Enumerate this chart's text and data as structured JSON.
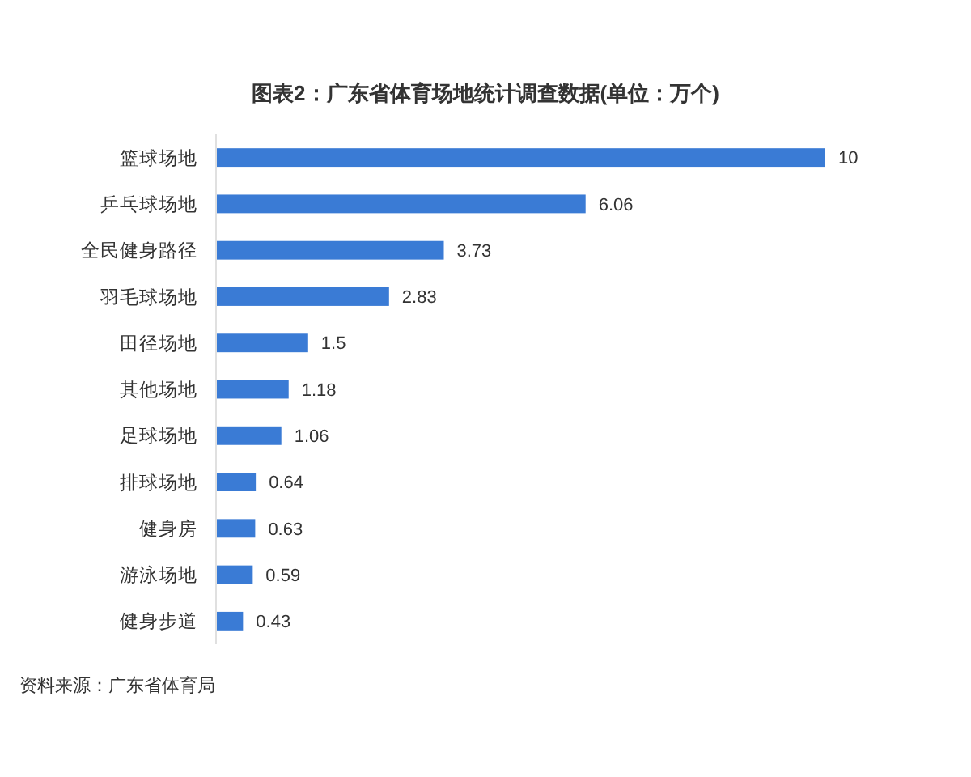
{
  "chart_data": {
    "type": "bar",
    "orientation": "horizontal",
    "title": "图表2：广东省体育场地统计调查数据(单位：万个)",
    "categories": [
      "篮球场地",
      "乒乓球场地",
      "全民健身路径",
      "羽毛球场地",
      "田径场地",
      "其他场地",
      "足球场地",
      "排球场地",
      "健身房",
      "游泳场地",
      "健身步道"
    ],
    "values": [
      10,
      6.06,
      3.73,
      2.83,
      1.5,
      1.18,
      1.06,
      0.64,
      0.63,
      0.59,
      0.43
    ],
    "color": "#3a7bd5",
    "data_labels": true,
    "annotations": [
      "资料来源：广东省体育局"
    ]
  }
}
